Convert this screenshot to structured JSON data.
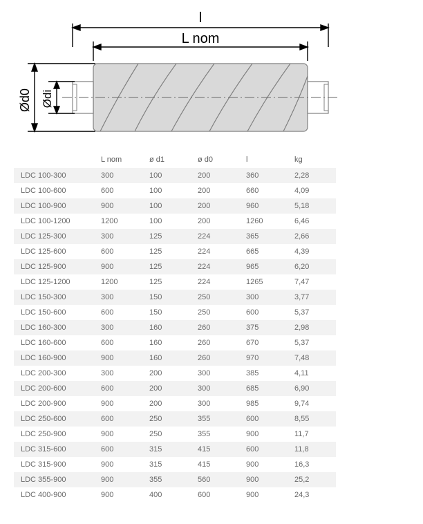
{
  "diagram": {
    "label_l": "l",
    "label_Lnom": "L nom",
    "label_d0": "Ød0",
    "label_di": "Ødi",
    "stroke": "#000000",
    "body_fill": "#d9d9d9",
    "body_stroke": "#808080",
    "text_color": "#000000",
    "font_size": 18
  },
  "table": {
    "columns": [
      "",
      "L nom",
      "ø d1",
      "ø d0",
      "l",
      "kg"
    ],
    "rows": [
      [
        "LDC 100-300",
        "300",
        "100",
        "200",
        "360",
        "2,28"
      ],
      [
        "LDC 100-600",
        "600",
        "100",
        "200",
        "660",
        "4,09"
      ],
      [
        "LDC 100-900",
        "900",
        "100",
        "200",
        "960",
        "5,18"
      ],
      [
        "LDC 100-1200",
        "1200",
        "100",
        "200",
        "1260",
        "6,46"
      ],
      [
        "LDC 125-300",
        "300",
        "125",
        "224",
        "365",
        "2,66"
      ],
      [
        "LDC 125-600",
        "600",
        "125",
        "224",
        "665",
        "4,39"
      ],
      [
        "LDC 125-900",
        "900",
        "125",
        "224",
        "965",
        "6,20"
      ],
      [
        "LDC 125-1200",
        "1200",
        "125",
        "224",
        "1265",
        "7,47"
      ],
      [
        "LDC 150-300",
        "300",
        "150",
        "250",
        "300",
        "3,77"
      ],
      [
        "LDC 150-600",
        "600",
        "150",
        "250",
        "600",
        "5,37"
      ],
      [
        "LDC 160-300",
        "300",
        "160",
        "260",
        "375",
        "2,98"
      ],
      [
        "LDC 160-600",
        "600",
        "160",
        "260",
        "670",
        "5,37"
      ],
      [
        "LDC 160-900",
        "900",
        "160",
        "260",
        "970",
        "7,48"
      ],
      [
        "LDC 200-300",
        "300",
        "200",
        "300",
        "385",
        "4,11"
      ],
      [
        "LDC 200-600",
        "600",
        "200",
        "300",
        "685",
        "6,90"
      ],
      [
        "LDC 200-900",
        "900",
        "200",
        "300",
        "985",
        "9,74"
      ],
      [
        "LDC 250-600",
        "600",
        "250",
        "355",
        "600",
        "8,55"
      ],
      [
        "LDC 250-900",
        "900",
        "250",
        "355",
        "900",
        "11,7"
      ],
      [
        "LDC 315-600",
        "600",
        "315",
        "415",
        "600",
        "11,8"
      ],
      [
        "LDC 315-900",
        "900",
        "315",
        "415",
        "900",
        "16,3"
      ],
      [
        "LDC 355-900",
        "900",
        "355",
        "560",
        "900",
        "25,2"
      ],
      [
        "LDC 400-900",
        "900",
        "400",
        "600",
        "900",
        "24,3"
      ]
    ]
  }
}
